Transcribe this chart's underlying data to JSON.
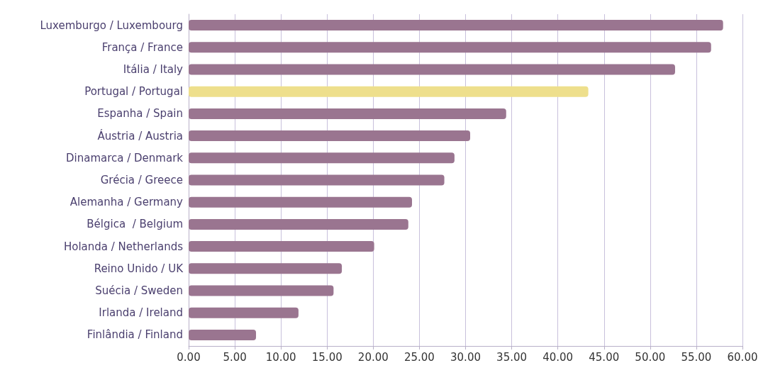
{
  "chart_data": {
    "type": "bar",
    "orientation": "horizontal",
    "categories": [
      "Luxemburgo / Luxembourg",
      "França / France",
      "Itália / Italy",
      "Portugal / Portugal",
      "Espanha / Spain",
      "Áustria / Austria",
      "Dinamarca / Denmark",
      "Grécia / Greece",
      "Alemanha / Germany",
      "Bélgica  / Belgium",
      "Holanda / Netherlands",
      "Reino Unido / UK",
      "Suécia / Sweden",
      "Irlanda / Ireland",
      "Finlândia / Finland"
    ],
    "values": [
      57.9,
      56.6,
      52.7,
      43.3,
      34.4,
      30.5,
      28.8,
      27.7,
      24.2,
      23.8,
      20.1,
      16.6,
      15.7,
      11.9,
      7.3
    ],
    "colors": [
      "#9a7590",
      "#9a7590",
      "#9a7590",
      "#eedf8c",
      "#9a7590",
      "#9a7590",
      "#9a7590",
      "#9a7590",
      "#9a7590",
      "#9a7590",
      "#9a7590",
      "#9a7590",
      "#9a7590",
      "#9a7590",
      "#9a7590"
    ],
    "xlim": [
      0,
      60
    ],
    "xticks": [
      {
        "value": 0,
        "label": "0.00"
      },
      {
        "value": 5,
        "label": "5.00"
      },
      {
        "value": 10,
        "label": "10.00"
      },
      {
        "value": 15,
        "label": "15.00"
      },
      {
        "value": 20,
        "label": "20.00"
      },
      {
        "value": 25,
        "label": "25.00"
      },
      {
        "value": 30,
        "label": "30.00"
      },
      {
        "value": 35,
        "label": "35.00"
      },
      {
        "value": 40,
        "label": "40.00"
      },
      {
        "value": 45,
        "label": "45.00"
      },
      {
        "value": 50,
        "label": "50.00"
      },
      {
        "value": 55,
        "label": "55.00"
      },
      {
        "value": 60,
        "label": "60.00"
      }
    ],
    "grid": "x"
  }
}
